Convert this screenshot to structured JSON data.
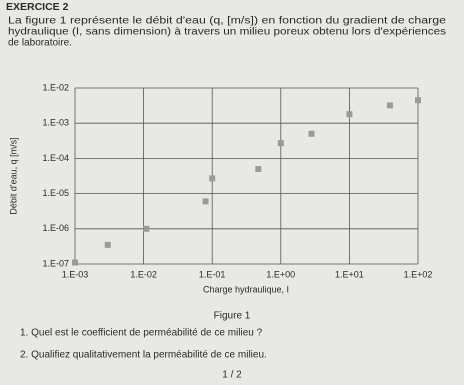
{
  "header": {
    "title": "EXERCICE 2"
  },
  "intro": {
    "lines": [
      "La figure 1 représente le débit d'eau (q, [m/s]) en fonction du gradient de charge",
      "hydraulique (I, sans dimension) à travers un milieu poreux obtenu lors d'expériences",
      "de laboratoire."
    ]
  },
  "chart_data": {
    "type": "scatter",
    "x_label": "Charge hydraulique, I",
    "y_label": "Débit d'eau, q [m/s]",
    "x": [
      0.001,
      0.003,
      0.011,
      0.08,
      0.1,
      0.47,
      1,
      2.8,
      10,
      39,
      100
    ],
    "y": [
      1.1e-07,
      3.5e-07,
      1e-06,
      6e-06,
      2.7e-05,
      5e-05,
      0.00027,
      0.0005,
      0.0018,
      0.0032,
      0.0045
    ],
    "color": "#9a9a9a",
    "log_x": true,
    "log_y": true,
    "grid": true,
    "xlim": [
      0.001,
      100
    ],
    "ylim": [
      1e-07,
      0.01
    ],
    "xticks": [
      {
        "value": 0.001,
        "label": "1.E-03"
      },
      {
        "value": 0.01,
        "label": "1.E-02"
      },
      {
        "value": 0.1,
        "label": "1.E-01"
      },
      {
        "value": 1,
        "label": "1.E+00"
      },
      {
        "value": 10,
        "label": "1.E+01"
      },
      {
        "value": 100,
        "label": "1.E+02"
      }
    ],
    "yticks": [
      {
        "value": 1e-07,
        "label": "1.E-07"
      },
      {
        "value": 1e-06,
        "label": "1.E-06"
      },
      {
        "value": 1e-05,
        "label": "1.E-05"
      },
      {
        "value": 0.0001,
        "label": "1.E-04"
      },
      {
        "value": 0.001,
        "label": "1.E-03"
      },
      {
        "value": 0.01,
        "label": "1.E-02"
      }
    ]
  },
  "caption": "Figure 1",
  "questions": [
    "1. Quel est le coefficient de perméabilité de ce milieu ?",
    "2. Qualifiez qualitativement la perméabilité de ce milieu."
  ],
  "footer": {
    "page": "1 / 2"
  }
}
